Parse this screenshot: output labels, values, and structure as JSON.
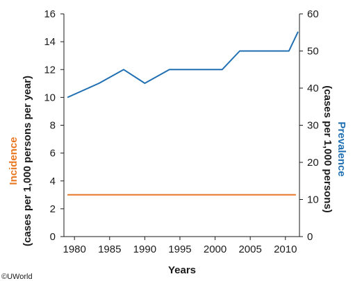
{
  "chart_data": {
    "type": "line",
    "xlabel": "Years",
    "x_ticks": [
      1980,
      1985,
      1990,
      1995,
      2000,
      2005,
      2010
    ],
    "xlim": [
      1978.5,
      2012
    ],
    "left_axis": {
      "label_main": "Incidence",
      "label_sub": "(cases per 1,000 persons per year)",
      "ylim": [
        0,
        16
      ],
      "ticks": [
        0,
        2,
        4,
        6,
        8,
        10,
        12,
        14,
        16
      ]
    },
    "right_axis": {
      "label_main": "Prevalence",
      "label_sub": "(cases per 1,000 persons)",
      "ylim": [
        0,
        60
      ],
      "ticks": [
        0,
        10,
        20,
        30,
        40,
        50,
        60
      ]
    },
    "series": [
      {
        "name": "Incidence",
        "axis": "left",
        "color": "#E87722",
        "x": [
          1979,
          2011.5
        ],
        "y": [
          3,
          3
        ]
      },
      {
        "name": "Prevalence",
        "axis": "right",
        "color": "#1F6FB2",
        "x": [
          1979,
          1983.5,
          1987,
          1990,
          1993.5,
          1998,
          2001,
          2003.5,
          2006,
          2008,
          2010.5,
          2011.8
        ],
        "y": [
          37.5,
          41.3,
          45,
          41.3,
          45,
          45,
          45,
          50,
          50,
          50,
          50,
          55.2
        ]
      }
    ],
    "grid": false
  },
  "footer": {
    "copyright": "©UWorld"
  }
}
